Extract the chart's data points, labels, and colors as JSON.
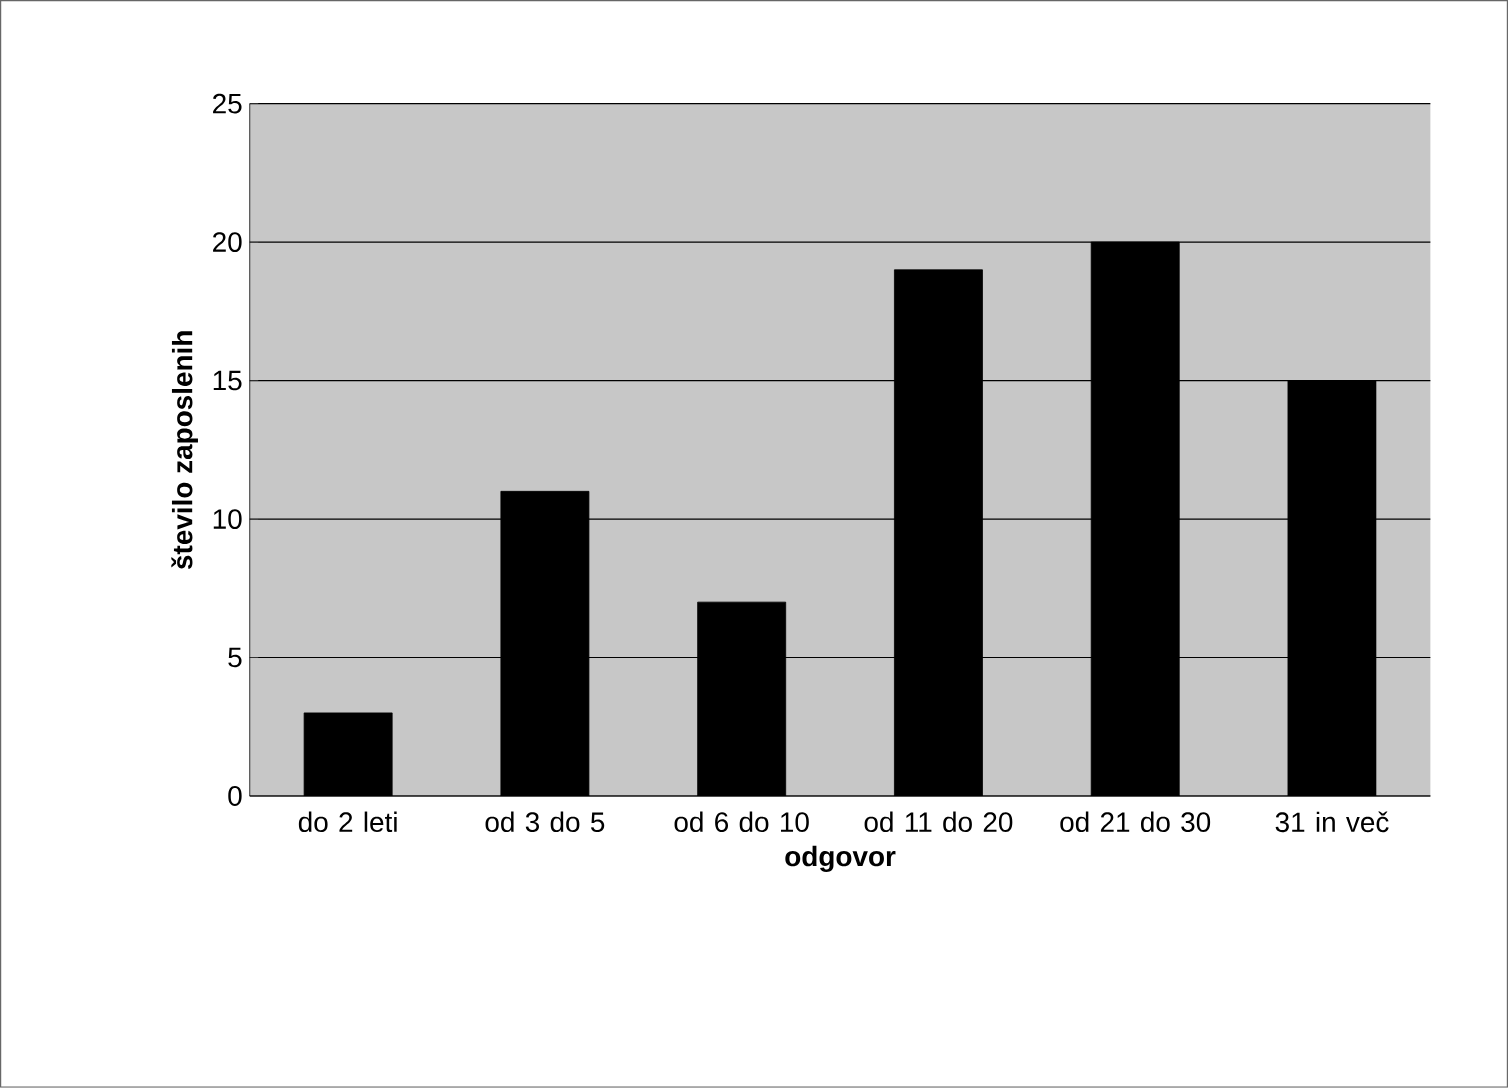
{
  "chart_data": {
    "type": "bar",
    "xlabel": "odgovor",
    "ylabel": "število zaposlenih",
    "categories": [
      "do 2 leti",
      "od 3 do 5",
      "od 6 do 10",
      "od 11 do 20",
      "od 21 do 30",
      "31 in več"
    ],
    "values": [
      3,
      11,
      7,
      19,
      20,
      15
    ],
    "color": "#000000",
    "ylim": [
      0,
      25
    ],
    "yticks": [
      0,
      5,
      10,
      15,
      20,
      25
    ],
    "grid": "y"
  }
}
